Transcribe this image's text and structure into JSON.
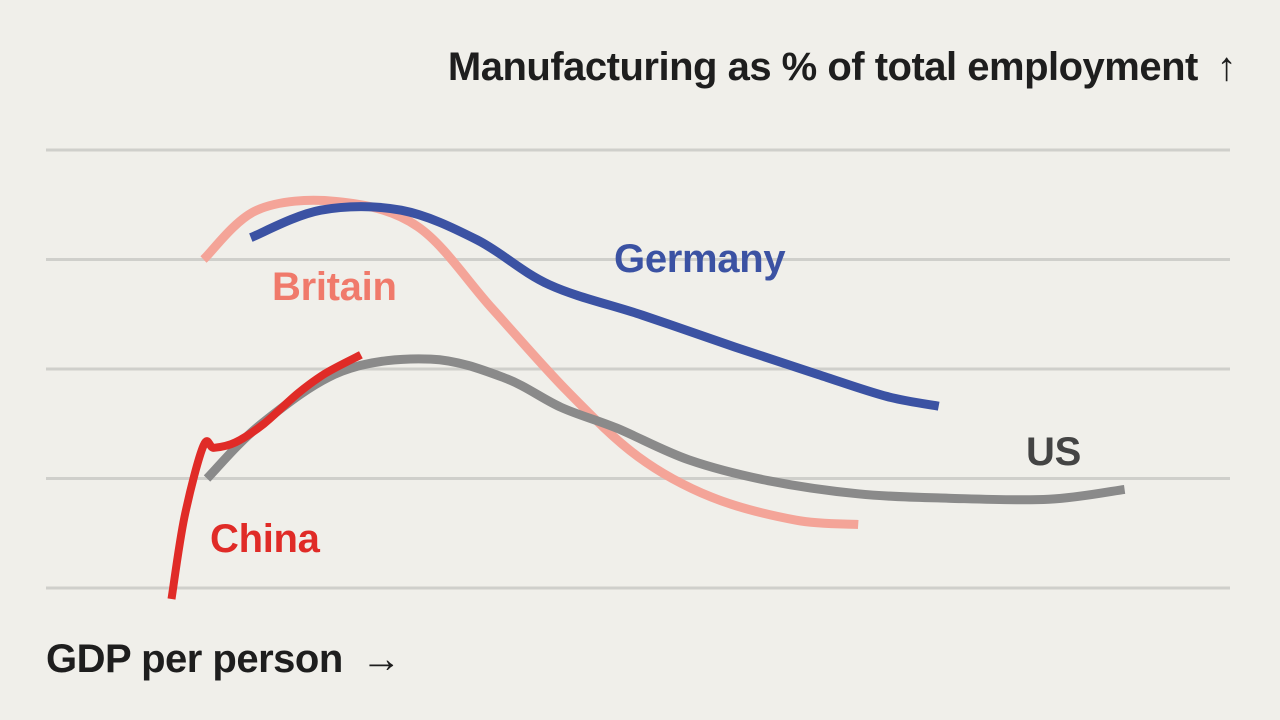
{
  "chart_data": {
    "type": "line",
    "title": "",
    "xlabel": "GDP per person",
    "ylabel": "Manufacturing as % of total employment",
    "x_arrow": "→",
    "y_arrow": "↑",
    "grid": true,
    "y_gridlines": [
      0,
      1,
      2,
      3,
      4
    ],
    "xlim": [
      0,
      100
    ],
    "ylim": [
      0,
      4
    ],
    "legend": "direct labels",
    "series": [
      {
        "name": "Britain",
        "color": "#f4a498",
        "points": [
          [
            13.3,
            3.0
          ],
          [
            17.8,
            3.45
          ],
          [
            24.5,
            3.53
          ],
          [
            31.4,
            3.3
          ],
          [
            37.7,
            2.55
          ],
          [
            44.0,
            1.8
          ],
          [
            50.0,
            1.2
          ],
          [
            56.2,
            0.83
          ],
          [
            63.3,
            0.62
          ],
          [
            68.6,
            0.58
          ]
        ]
      },
      {
        "name": "Germany",
        "color": "#3b52a3",
        "points": [
          [
            17.3,
            3.2
          ],
          [
            23.2,
            3.45
          ],
          [
            30.0,
            3.45
          ],
          [
            36.4,
            3.18
          ],
          [
            42.5,
            2.77
          ],
          [
            50.4,
            2.49
          ],
          [
            58.2,
            2.2
          ],
          [
            65.2,
            1.95
          ],
          [
            71.0,
            1.75
          ],
          [
            75.4,
            1.66
          ]
        ]
      },
      {
        "name": "US",
        "color": "#8a8a8a",
        "points": [
          [
            13.6,
            1.0
          ],
          [
            18.2,
            1.5
          ],
          [
            25.0,
            1.98
          ],
          [
            32.5,
            2.09
          ],
          [
            38.7,
            1.92
          ],
          [
            43.5,
            1.65
          ],
          [
            48.2,
            1.46
          ],
          [
            54.3,
            1.17
          ],
          [
            61.0,
            0.98
          ],
          [
            68.6,
            0.86
          ],
          [
            76.2,
            0.82
          ],
          [
            84.7,
            0.81
          ],
          [
            91.1,
            0.9
          ]
        ]
      },
      {
        "name": "China",
        "color": "#e02b27",
        "points": [
          [
            10.6,
            -0.1
          ],
          [
            11.7,
            0.65
          ],
          [
            13.3,
            1.3
          ],
          [
            14.2,
            1.28
          ],
          [
            16.0,
            1.33
          ],
          [
            18.4,
            1.5
          ],
          [
            21.3,
            1.78
          ],
          [
            23.6,
            1.96
          ],
          [
            26.6,
            2.13
          ]
        ]
      }
    ]
  },
  "labels": {
    "britain": "Britain",
    "germany": "Germany",
    "us": "US",
    "china": "China"
  }
}
